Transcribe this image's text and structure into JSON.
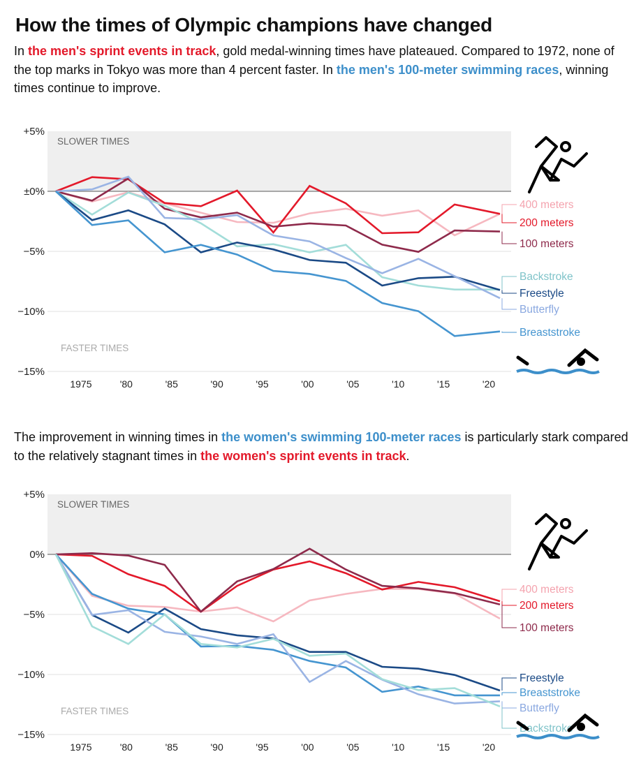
{
  "title": "How the times of Olympic champions have changed",
  "intro": {
    "pre": "In ",
    "hl1": "the men's sprint events in track",
    "mid": ", gold medal-winning times have plateaued. Compared to 1972, none of the top marks in Tokyo was more than 4 percent faster. In ",
    "hl2": "the men's 100-meter swimming races",
    "post": ", winning times continue to improve."
  },
  "second_intro": {
    "pre": "The improvement in winning times in ",
    "hl1": "the women's swimming 100-meter races",
    "mid": " is particularly stark compared to the relatively stagnant times in ",
    "hl2": "the women's sprint events in track",
    "post": "."
  },
  "icons": [
    "runner-icon",
    "swimmer-icon"
  ],
  "colors": {
    "accent_red": "#e3192a",
    "accent_blue": "#3d8fca",
    "slower_band": "#efefef"
  },
  "chart_data": [
    {
      "type": "line",
      "title": "",
      "xlabel": "",
      "ylabel": "",
      "band_labels": {
        "slower": "SLOWER TIMES",
        "faster": "FASTER TIMES"
      },
      "x": [
        1972,
        1976,
        1980,
        1984,
        1988,
        1992,
        1996,
        2000,
        2004,
        2008,
        2012,
        2016,
        2021
      ],
      "xticks": [
        1975,
        1980,
        1985,
        1990,
        1995,
        2000,
        2005,
        2010,
        2015,
        2020
      ],
      "xtick_labels": [
        "1975",
        "'80",
        "'85",
        "'90",
        "'95",
        "'00",
        "'05",
        "'10",
        "'15",
        "'20"
      ],
      "yticks": [
        5,
        0,
        -5,
        -10,
        -15
      ],
      "ytick_labels": [
        "+5%",
        "±0%",
        "−5%",
        "−10%",
        "−15%"
      ],
      "ylim": [
        -15,
        5
      ],
      "grid": true,
      "legend": "right, direct labels",
      "series": [
        {
          "name": "400 meters",
          "color": "#f6b8c0",
          "label_color": "#f4a3ae",
          "values": [
            0,
            -0.85,
            -0.08,
            -1.0,
            -1.78,
            -2.56,
            -2.62,
            -1.84,
            -1.45,
            -2.03,
            -1.59,
            -3.66,
            -1.88
          ]
        },
        {
          "name": "200 meters",
          "color": "#e3192a",
          "label_color": "#e3192a",
          "values": [
            0,
            1.18,
            1.0,
            -0.97,
            -1.24,
            0.06,
            -3.43,
            0.45,
            -1.0,
            -3.49,
            -3.41,
            -1.1,
            -1.88
          ]
        },
        {
          "name": "100 meters",
          "color": "#8e2a4b",
          "label_color": "#8e2a4b",
          "values": [
            0,
            -0.78,
            1.07,
            -1.45,
            -2.17,
            -1.78,
            -2.95,
            -2.67,
            -2.85,
            -4.44,
            -5.04,
            -3.26,
            -3.35
          ]
        },
        {
          "name": "Backstroke",
          "color": "#a3ddd9",
          "label_color": "#7fc3c9",
          "values": [
            0,
            -1.94,
            -0.1,
            -1.2,
            -2.66,
            -4.59,
            -4.4,
            -5.08,
            -4.46,
            -7.15,
            -7.85,
            -8.18,
            -8.18
          ]
        },
        {
          "name": "Freestyle",
          "color": "#1b4a86",
          "label_color": "#1b4a86",
          "values": [
            0,
            -2.4,
            -1.59,
            -2.75,
            -5.08,
            -4.26,
            -4.84,
            -5.72,
            -5.95,
            -7.85,
            -7.23,
            -7.11,
            -8.22
          ]
        },
        {
          "name": "Butterfly",
          "color": "#9ab4e4",
          "label_color": "#8aa8e0",
          "values": [
            0,
            0.16,
            1.22,
            -2.21,
            -2.33,
            -1.98,
            -3.68,
            -4.17,
            -5.56,
            -6.82,
            -5.62,
            -7.07,
            -8.9
          ]
        },
        {
          "name": "Breaststroke",
          "color": "#4595d0",
          "label_color": "#4595d0",
          "values": [
            0,
            -2.81,
            -2.42,
            -5.08,
            -4.46,
            -5.27,
            -6.63,
            -6.88,
            -7.46,
            -9.3,
            -9.98,
            -12.05,
            -11.67
          ]
        }
      ]
    },
    {
      "type": "line",
      "title": "",
      "xlabel": "",
      "ylabel": "",
      "band_labels": {
        "slower": "SLOWER TIMES",
        "faster": "FASTER TIMES"
      },
      "x": [
        1972,
        1976,
        1980,
        1984,
        1988,
        1992,
        1996,
        2000,
        2004,
        2008,
        2012,
        2016,
        2021
      ],
      "xticks": [
        1975,
        1980,
        1985,
        1990,
        1995,
        2000,
        2005,
        2010,
        2015,
        2020
      ],
      "xtick_labels": [
        "1975",
        "'80",
        "'85",
        "'90",
        "'95",
        "'00",
        "'05",
        "'10",
        "'15",
        "'20"
      ],
      "yticks": [
        5,
        0,
        -5,
        -10,
        -15
      ],
      "ytick_labels": [
        "+5%",
        "0%",
        "−5%",
        "−10%",
        "−15%"
      ],
      "ylim": [
        -15,
        5
      ],
      "grid": true,
      "legend": "right, direct labels",
      "series": [
        {
          "name": "400 meters",
          "color": "#f6b8c0",
          "label_color": "#f4a3ae",
          "values": [
            0,
            -3.45,
            -4.28,
            -4.38,
            -4.77,
            -4.42,
            -5.58,
            -3.84,
            -3.29,
            -2.87,
            -2.87,
            -3.26,
            -5.35
          ]
        },
        {
          "name": "200 meters",
          "color": "#e3192a",
          "label_color": "#e3192a",
          "values": [
            0,
            -0.12,
            -1.65,
            -2.62,
            -4.77,
            -2.62,
            -1.26,
            -0.58,
            -1.57,
            -2.93,
            -2.29,
            -2.73,
            -3.9
          ]
        },
        {
          "name": "100 meters",
          "color": "#8e2a4b",
          "label_color": "#8e2a4b",
          "values": [
            0,
            0.1,
            -0.1,
            -0.87,
            -4.77,
            -2.25,
            -1.22,
            0.47,
            -1.26,
            -2.62,
            -2.83,
            -3.22,
            -4.17
          ]
        },
        {
          "name": "Freestyle",
          "color": "#1b4a86",
          "label_color": "#1b4a86",
          "values": [
            0,
            -5.04,
            -6.51,
            -4.52,
            -6.22,
            -6.74,
            -7.0,
            -8.12,
            -8.12,
            -9.36,
            -9.52,
            -10.04,
            -11.34
          ]
        },
        {
          "name": "Breaststroke",
          "color": "#4595d0",
          "label_color": "#4595d0",
          "values": [
            0,
            -3.29,
            -4.52,
            -5.0,
            -7.67,
            -7.62,
            -7.95,
            -8.88,
            -9.42,
            -11.45,
            -11.0,
            -11.74,
            -11.74
          ]
        },
        {
          "name": "Butterfly",
          "color": "#9ab4e4",
          "label_color": "#8aa8e0",
          "values": [
            0,
            -5.04,
            -4.65,
            -6.45,
            -6.84,
            -7.46,
            -6.65,
            -10.62,
            -8.88,
            -10.43,
            -11.65,
            -12.42,
            -12.23
          ]
        },
        {
          "name": "Backstroke",
          "color": "#a3ddd9",
          "label_color": "#7fc3c9",
          "values": [
            0,
            -6.0,
            -7.46,
            -5.0,
            -7.46,
            -7.75,
            -7.03,
            -8.45,
            -8.26,
            -10.39,
            -11.3,
            -11.14,
            -12.66
          ]
        }
      ]
    }
  ]
}
